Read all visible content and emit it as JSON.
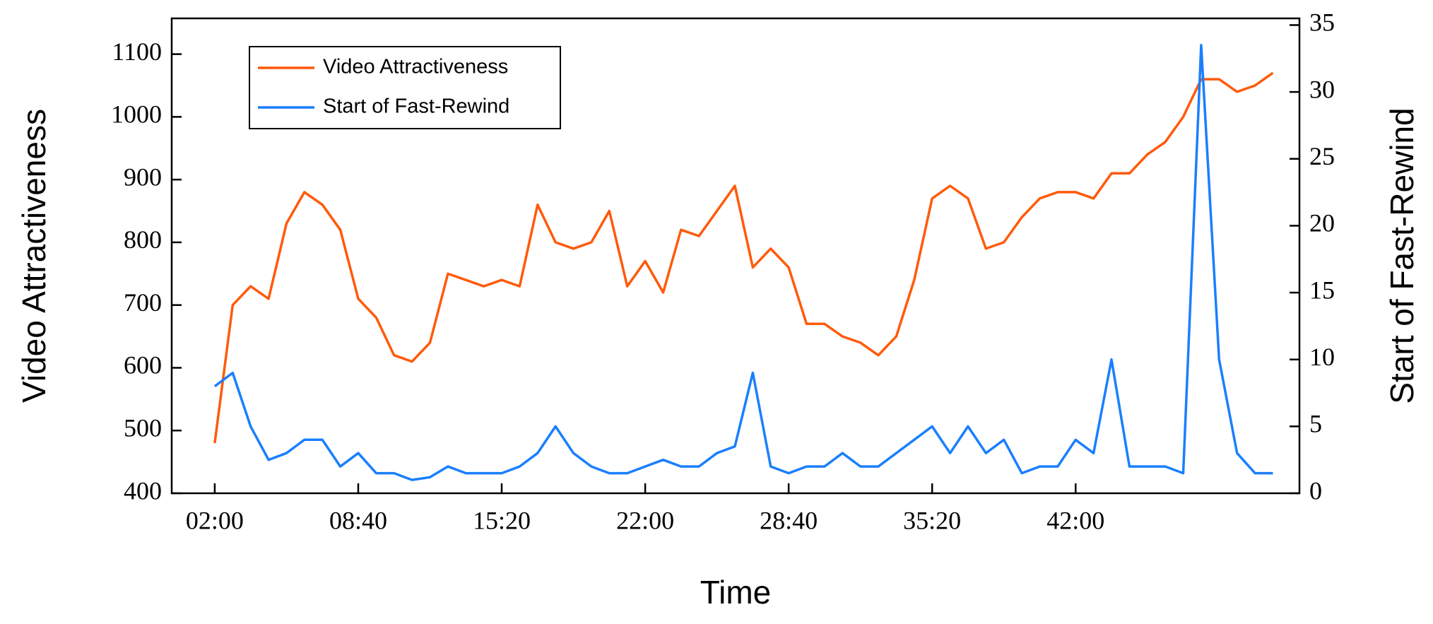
{
  "chart_data": {
    "type": "line",
    "x_label": "Time",
    "y_label": "Video Attractiveness",
    "y2_label": "Start of Fast-Rewind",
    "x": [
      120,
      170,
      220,
      270,
      320,
      370,
      420,
      470,
      520,
      570,
      620,
      670,
      720,
      770,
      820,
      870,
      920,
      970,
      1020,
      1070,
      1120,
      1170,
      1220,
      1270,
      1320,
      1370,
      1420,
      1470,
      1520,
      1570,
      1620,
      1670,
      1720,
      1770,
      1820,
      1870,
      1920,
      1970,
      2020,
      2070,
      2120,
      2170,
      2220,
      2270,
      2320,
      2370,
      2420,
      2470,
      2520,
      2570,
      2620,
      2670,
      2720,
      2770,
      2820,
      2870,
      2920,
      2970,
      3020,
      3070
    ],
    "xlim": [
      0,
      3144
    ],
    "xticks": [
      {
        "value": 120,
        "label": "02:00"
      },
      {
        "value": 520,
        "label": "08:40"
      },
      {
        "value": 920,
        "label": "15:20"
      },
      {
        "value": 1320,
        "label": "22:00"
      },
      {
        "value": 1720,
        "label": "28:40"
      },
      {
        "value": 2120,
        "label": "35:20"
      },
      {
        "value": 2520,
        "label": "42:00"
      }
    ],
    "ylim": [
      400,
      1157
    ],
    "yticks": [
      400,
      500,
      600,
      700,
      800,
      900,
      1000,
      1100
    ],
    "y2lim": [
      0,
      35.5
    ],
    "y2ticks": [
      0,
      5,
      10,
      15,
      20,
      25,
      30,
      35
    ],
    "grid": false,
    "legend": "upper left",
    "series": [
      {
        "name": "Video Attractiveness",
        "color": "#ff5a0a",
        "axis": "y",
        "values": [
          480,
          700,
          730,
          710,
          830,
          880,
          860,
          820,
          710,
          680,
          620,
          610,
          640,
          750,
          740,
          730,
          740,
          730,
          860,
          800,
          790,
          800,
          850,
          730,
          770,
          720,
          820,
          810,
          850,
          890,
          760,
          790,
          760,
          670,
          670,
          650,
          640,
          620,
          650,
          740,
          870,
          890,
          870,
          790,
          800,
          840,
          870,
          880,
          880,
          870,
          910,
          910,
          940,
          960,
          1000,
          1060,
          1060,
          1040,
          1050,
          1070
        ]
      },
      {
        "name": "Start of Fast-Rewind",
        "color": "#1a7fff",
        "axis": "y2",
        "values": [
          8,
          9,
          5,
          2.5,
          3,
          4,
          4,
          2,
          3,
          1.5,
          1.5,
          1,
          1.2,
          2,
          1.5,
          1.5,
          1.5,
          2,
          3,
          5,
          3,
          2,
          1.5,
          1.5,
          2,
          2.5,
          2,
          2,
          3,
          3.5,
          9,
          2,
          1.5,
          2,
          2,
          3,
          2,
          2,
          3,
          4,
          5,
          3,
          5,
          3,
          4,
          1.5,
          2,
          2,
          4,
          3,
          10,
          2,
          2,
          2,
          1.5,
          33.5,
          10,
          3,
          1.5,
          1.5
        ]
      }
    ]
  }
}
